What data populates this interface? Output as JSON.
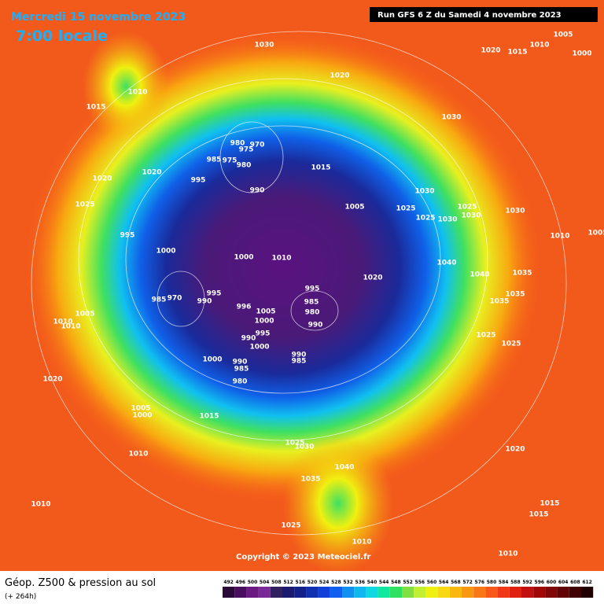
{
  "header": {
    "date": "Mercredi 15 novembre 2023",
    "time": "7:00 locale",
    "run": "Run GFS 6 Z du Samedi 4 novembre 2023",
    "copyright": "Copyright © 2023 Meteociel.fr"
  },
  "footer": {
    "title": "Géop. Z500 & pression au sol",
    "lead": "(+ 264h)"
  },
  "legend": {
    "labels": [
      492,
      496,
      500,
      504,
      508,
      512,
      516,
      520,
      524,
      528,
      532,
      536,
      540,
      544,
      548,
      552,
      556,
      560,
      564,
      568,
      572,
      576,
      580,
      584,
      588,
      592,
      596,
      600,
      604,
      608,
      612
    ],
    "colors": [
      "#2a0a36",
      "#4a0e5e",
      "#6a1a80",
      "#7a2a98",
      "#302060",
      "#1a1a70",
      "#12208a",
      "#1030b0",
      "#1040d8",
      "#1060f0",
      "#1090f0",
      "#10b8f0",
      "#10d8e0",
      "#10e8a0",
      "#30e060",
      "#80e040",
      "#c0f030",
      "#f0f010",
      "#f8d810",
      "#f8b810",
      "#f89810",
      "#f87818",
      "#f85818",
      "#f03818",
      "#e02010",
      "#c01010",
      "#a00808",
      "#800808",
      "#600404",
      "#400202",
      "#200000"
    ]
  },
  "isobars": {
    "labels": [
      1030,
      1020,
      1005,
      1020,
      1015,
      1010,
      1000,
      1010,
      1015,
      1030,
      980,
      975,
      970,
      985,
      975,
      980,
      1015,
      1020,
      1020,
      995,
      990,
      1030,
      1025,
      1005,
      1025,
      1025,
      1030,
      1025,
      1030,
      1030,
      995,
      1010,
      1005,
      1000,
      1000,
      1010,
      1040,
      1020,
      1040,
      1035,
      995,
      1035,
      985,
      990,
      995,
      985,
      970,
      996,
      1035,
      1005,
      1005,
      980,
      1000,
      990,
      1010,
      1010,
      995,
      990,
      1025,
      1025,
      1000,
      1000,
      990,
      985,
      990,
      985,
      980,
      1020,
      1005,
      1000,
      1015,
      1025,
      1030,
      1020,
      1010,
      1040,
      1035,
      1010,
      1015,
      1015,
      1025,
      1010,
      1010
    ]
  }
}
